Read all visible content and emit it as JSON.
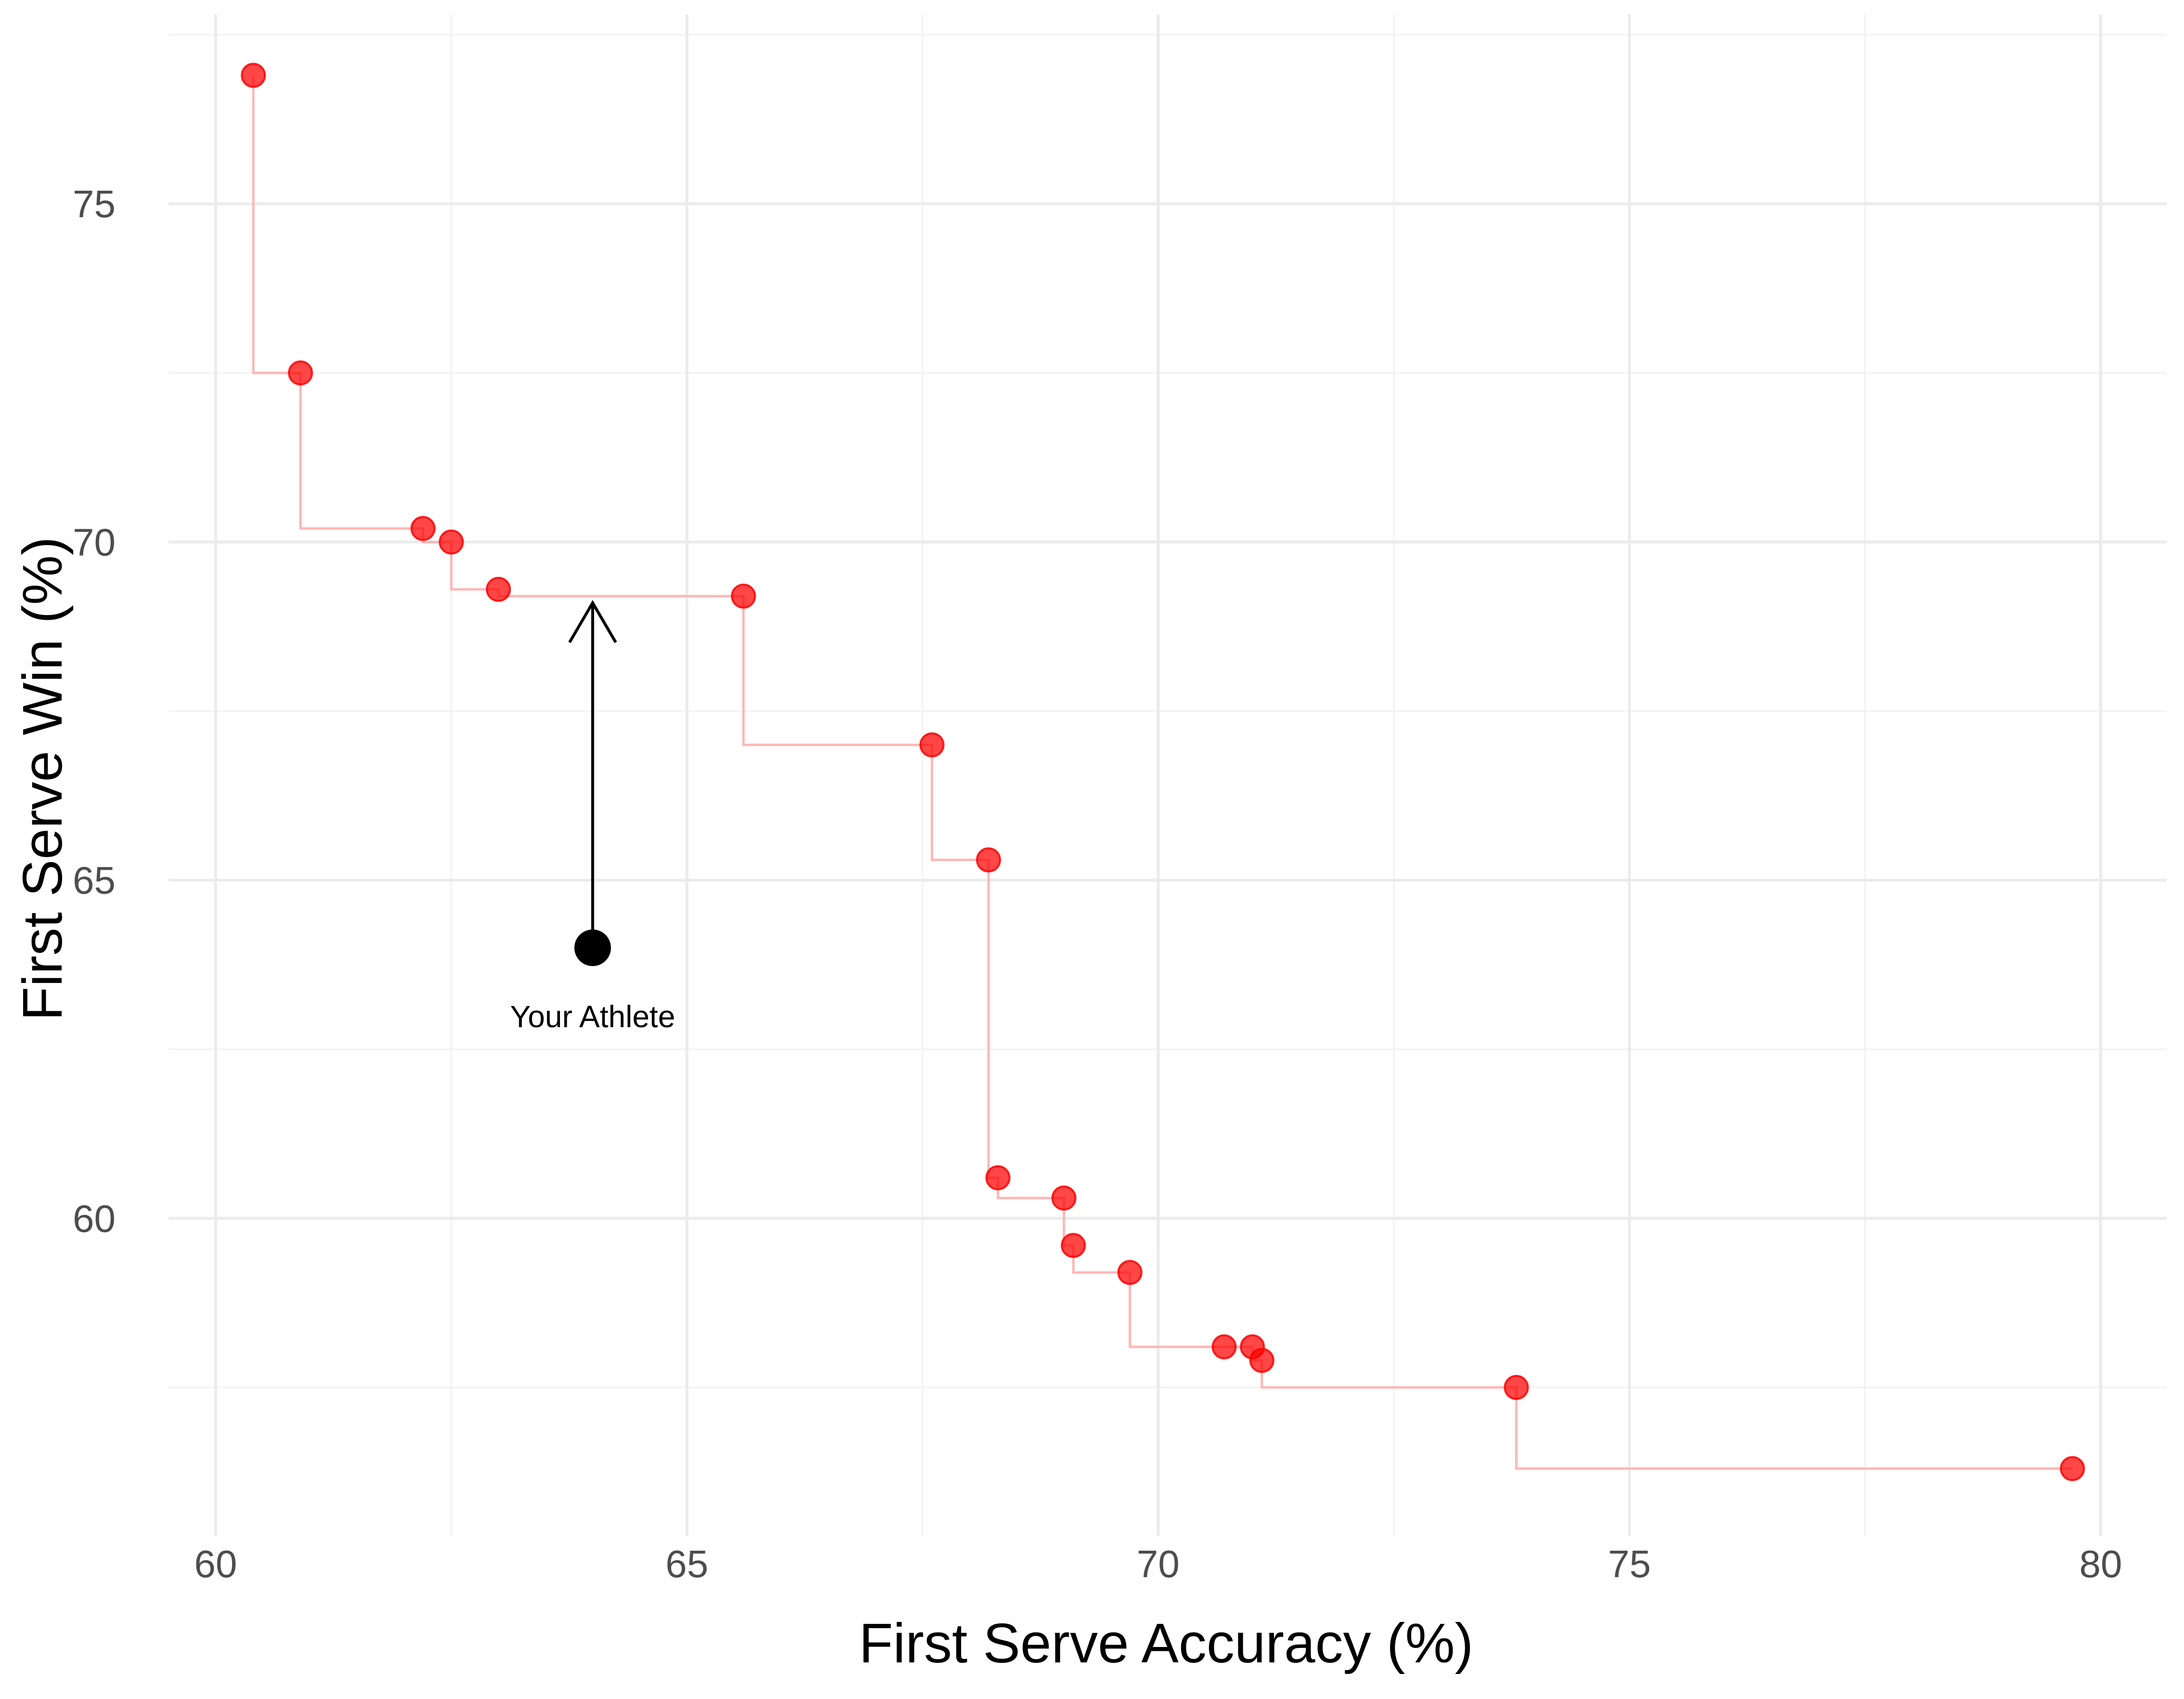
{
  "chart_data": {
    "type": "scatter",
    "xlabel": "First Serve Accuracy (%)",
    "ylabel": "First Serve Win (%)",
    "xlim": [
      59.5,
      80.7
    ],
    "ylim": [
      55.3,
      77.8
    ],
    "x_ticks": [
      60,
      65,
      70,
      75,
      80
    ],
    "y_ticks": [
      60,
      65,
      70,
      75
    ],
    "x_minor_ticks": [
      62.5,
      67.5,
      72.5,
      77.5
    ],
    "y_minor_ticks": [
      57.5,
      62.5,
      67.5,
      72.5,
      77.5
    ],
    "grid": true,
    "series": [
      {
        "marker_color": "#FF0000",
        "line_color": "#FFB6B6",
        "points": [
          {
            "x": 60.4,
            "y": 76.9
          },
          {
            "x": 60.9,
            "y": 72.5
          },
          {
            "x": 62.2,
            "y": 70.2
          },
          {
            "x": 62.5,
            "y": 70.0
          },
          {
            "x": 63.0,
            "y": 69.3
          },
          {
            "x": 65.6,
            "y": 69.2
          },
          {
            "x": 67.6,
            "y": 67.0
          },
          {
            "x": 68.2,
            "y": 65.3
          },
          {
            "x": 68.3,
            "y": 60.6
          },
          {
            "x": 69.0,
            "y": 60.3
          },
          {
            "x": 69.1,
            "y": 59.6
          },
          {
            "x": 69.7,
            "y": 59.2
          },
          {
            "x": 70.7,
            "y": 58.1
          },
          {
            "x": 71.0,
            "y": 58.1
          },
          {
            "x": 71.1,
            "y": 57.9
          },
          {
            "x": 73.8,
            "y": 57.5
          },
          {
            "x": 79.7,
            "y": 56.3
          }
        ]
      }
    ],
    "highlight": {
      "label": "Your Athlete",
      "x": 64.0,
      "y": 64.0,
      "arrow_to_y": 69.1,
      "color": "#000000"
    }
  }
}
